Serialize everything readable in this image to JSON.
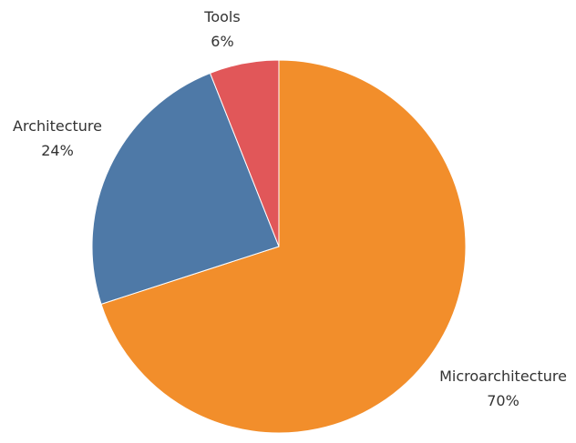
{
  "chart_data": {
    "type": "pie",
    "title": "",
    "slices": [
      {
        "label": "Microarchitecture",
        "value": 70,
        "value_label": "70%",
        "color": "#f28e2b"
      },
      {
        "label": "Architecture",
        "value": 24,
        "value_label": "24%",
        "color": "#4e79a7"
      },
      {
        "label": "Tools",
        "value": 6,
        "value_label": "6%",
        "color": "#e15759"
      }
    ],
    "start_angle": "12 o'clock",
    "direction": "clockwise",
    "legend": "none",
    "labels": "outside"
  }
}
